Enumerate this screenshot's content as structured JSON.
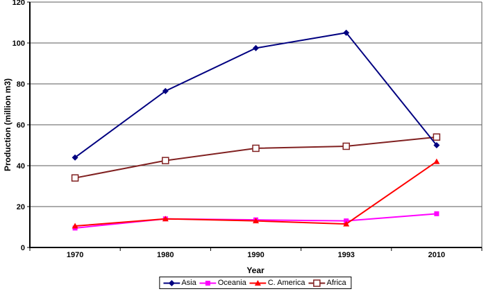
{
  "chart_data": {
    "type": "line",
    "title": "",
    "xlabel": "Year",
    "ylabel": "Production (million m3)",
    "categories": [
      "1970",
      "1980",
      "1990",
      "1993",
      "2010"
    ],
    "ylim": [
      0,
      120
    ],
    "y_ticks": [
      0,
      20,
      40,
      60,
      80,
      100,
      120
    ],
    "grid": true,
    "legend_position": "bottom-center",
    "colors": {
      "gridline": "#595959",
      "axis": "#000000",
      "background": "#ffffff"
    },
    "series": [
      {
        "name": "Asia",
        "color": "#000080",
        "marker": "diamond",
        "values": [
          44,
          76.5,
          97.5,
          105,
          50
        ]
      },
      {
        "name": "Oceania",
        "color": "#ff00ff",
        "marker": "square",
        "values": [
          9.5,
          14,
          13.5,
          13,
          16.5
        ]
      },
      {
        "name": "C. America",
        "color": "#ff0000",
        "marker": "triangle",
        "values": [
          10.5,
          14,
          13,
          11.5,
          42
        ]
      },
      {
        "name": "Africa",
        "color": "#802020",
        "marker": "open-square",
        "values": [
          34,
          42.5,
          48.5,
          49.5,
          54
        ]
      }
    ]
  }
}
